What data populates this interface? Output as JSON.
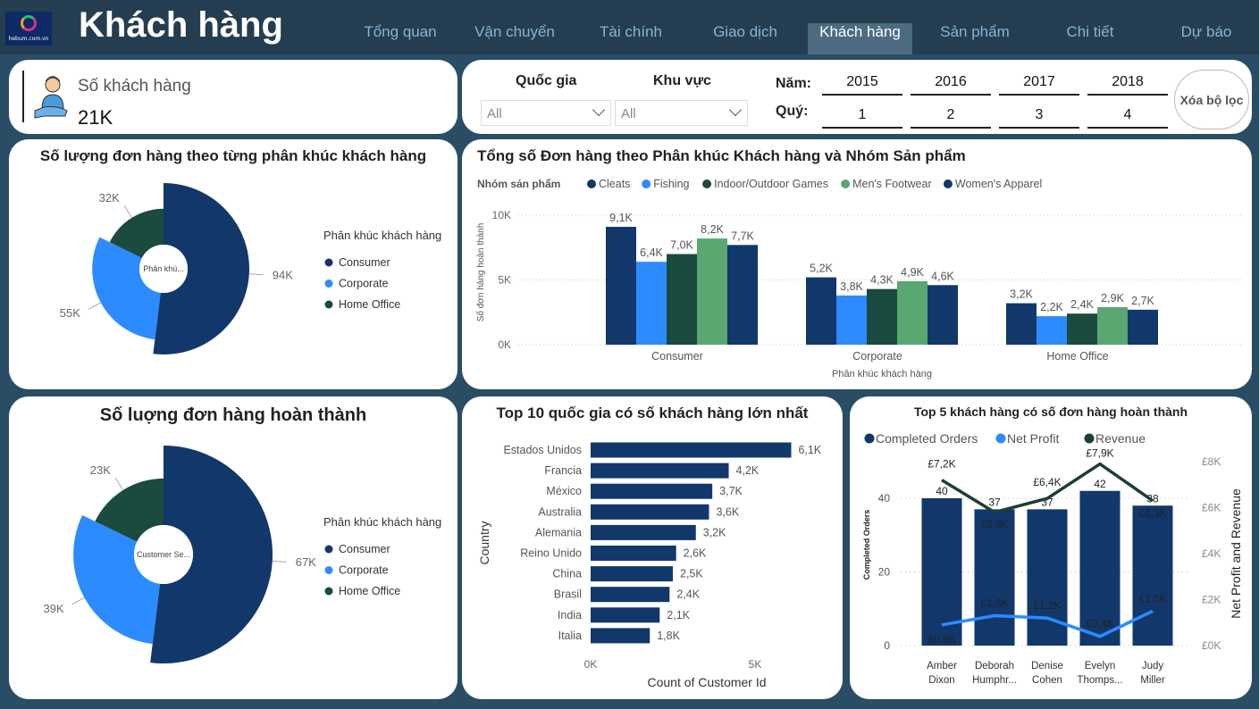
{
  "header": {
    "title": "Khách hàng",
    "logo_text": "hebum.com.vn",
    "tabs": [
      {
        "label": "Tổng quan"
      },
      {
        "label": "Vận chuyển"
      },
      {
        "label": "Tài chính"
      },
      {
        "label": "Giao dịch"
      },
      {
        "label": "Khách hàng",
        "active": true
      },
      {
        "label": "Sản phẩm"
      },
      {
        "label": "Chi tiết"
      },
      {
        "label": "Dự báo"
      }
    ]
  },
  "kpi": {
    "label": "Số khách hàng",
    "value": "21K",
    "icon": "customer-service-person-icon"
  },
  "filters": {
    "country_label": "Quốc gia",
    "country_value": "All",
    "region_label": "Khu vực",
    "region_value": "All",
    "year_label": "Năm:",
    "years": [
      "2015",
      "2016",
      "2017",
      "2018"
    ],
    "quarter_label": "Quý:",
    "quarters": [
      "1",
      "2",
      "3",
      "4"
    ],
    "clear_label": "Xóa bộ lọc"
  },
  "colors": {
    "consumer": "#12376b",
    "corporate": "#2c8bff",
    "home_office": "#1b4a3e",
    "mens_footwear": "#5aa772",
    "revenue": "#1d3f35"
  },
  "chart_data": [
    {
      "type": "pie",
      "variant": "rose-donut",
      "title": "Số lượng đơn hàng theo từng phân khúc khách hàng",
      "center_label": "Phân khú...",
      "legend_title": "Phân khúc khách hàng",
      "legend_position": "right",
      "categories": [
        "Consumer",
        "Corporate",
        "Home Office"
      ],
      "values": [
        94000,
        55000,
        32000
      ],
      "labels": [
        "94K",
        "55K",
        "32K"
      ],
      "colors": [
        "#12376b",
        "#2c8bff",
        "#1b4a3e"
      ]
    },
    {
      "type": "bar",
      "variant": "clustered",
      "title": "Tổng số Đơn hàng theo Phân khúc Khách hàng và Nhóm Sản phẩm",
      "legend_title": "Nhóm sản phẩm",
      "legend_position": "top-left",
      "xlabel": "Phân khúc khách hàng",
      "ylabel": "Số đơn hàng hoàn thành",
      "ylim": [
        0,
        10000
      ],
      "yticks": [
        "0K",
        "5K",
        "10K"
      ],
      "grid": true,
      "categories": [
        "Consumer",
        "Corporate",
        "Home Office"
      ],
      "series": [
        {
          "name": "Cleats",
          "color": "#12376b",
          "values": [
            9100,
            5200,
            3200
          ],
          "labels": [
            "9,1K",
            "5,2K",
            "3,2K"
          ]
        },
        {
          "name": "Fishing",
          "color": "#2c8bff",
          "values": [
            6400,
            3800,
            2200
          ],
          "labels": [
            "6,4K",
            "3,8K",
            "2,2K"
          ]
        },
        {
          "name": "Indoor/Outdoor Games",
          "color": "#1b4a3e",
          "values": [
            7000,
            4300,
            2400
          ],
          "labels": [
            "7,0K",
            "4,3K",
            "2,4K"
          ]
        },
        {
          "name": "Men's Footwear",
          "color": "#5aa772",
          "values": [
            8200,
            4900,
            2900
          ],
          "labels": [
            "8,2K",
            "4,9K",
            "2,9K"
          ]
        },
        {
          "name": "Women's Apparel",
          "color": "#10386a",
          "values": [
            7700,
            4600,
            2700
          ],
          "labels": [
            "7,7K",
            "4,6K",
            "2,7K"
          ]
        }
      ]
    },
    {
      "type": "pie",
      "variant": "rose-donut",
      "title": "Số luợng đơn hàng hoàn thành",
      "center_label": "Customer Se...",
      "legend_title": "Phân khúc khách hàng",
      "legend_position": "right",
      "categories": [
        "Consumer",
        "Corporate",
        "Home Office"
      ],
      "values": [
        67000,
        39000,
        23000
      ],
      "labels": [
        "67K",
        "39K",
        "23K"
      ],
      "colors": [
        "#12376b",
        "#2c8bff",
        "#1b4a3e"
      ]
    },
    {
      "type": "bar",
      "variant": "horizontal",
      "title": "Top 10 quốc gia có số khách hàng lớn nhất",
      "xlabel": "Count of Customer Id",
      "ylabel": "Country",
      "xlim": [
        0,
        6100
      ],
      "xticks": [
        "0K",
        "5K"
      ],
      "categories": [
        "Estados Unidos",
        "Francia",
        "México",
        "Australia",
        "Alemania",
        "Reino Unido",
        "China",
        "Brasil",
        "India",
        "Italia"
      ],
      "values": [
        6100,
        4200,
        3700,
        3600,
        3200,
        2600,
        2500,
        2400,
        2100,
        1800
      ],
      "labels": [
        "6,1K",
        "4,2K",
        "3,7K",
        "3,6K",
        "3,2K",
        "2,6K",
        "2,5K",
        "2,4K",
        "2,1K",
        "1,8K"
      ],
      "color": "#12376b"
    },
    {
      "type": "bar",
      "variant": "combo-bar-line",
      "title": "Top 5 khách hàng có số đơn hàng hoàn thành",
      "legend_position": "top-left",
      "categories": [
        "Amber Dixon",
        "Deborah Humphr...",
        "Denise Cohen",
        "Evelyn Thomps...",
        "Judy Miller"
      ],
      "ylabel": "Completed Orders",
      "y2label": "Net Profit and Revenue",
      "ylim": [
        0,
        48
      ],
      "yticks": [
        "0",
        "20",
        "40"
      ],
      "y2lim": [
        0,
        8000
      ],
      "y2ticks": [
        "£0K",
        "£2K",
        "£4K",
        "£6K",
        "£8K"
      ],
      "grid": true,
      "series": [
        {
          "name": "Completed Orders",
          "type": "bar",
          "color": "#12376b",
          "values": [
            40,
            37,
            37,
            42,
            38
          ],
          "labels": [
            "40",
            "37",
            "37",
            "42",
            "38"
          ]
        },
        {
          "name": "Net Profit",
          "type": "line",
          "axis": "y2",
          "color": "#2c8bff",
          "values": [
            900,
            1300,
            1200,
            400,
            1500
          ],
          "labels": [
            "£0,9K",
            "£1,3K",
            "£1,2K",
            "£0,4K",
            "£1,5K"
          ]
        },
        {
          "name": "Revenue",
          "type": "line",
          "axis": "y2",
          "color": "#1d3f35",
          "values": [
            7200,
            5800,
            6400,
            7900,
            6300
          ],
          "labels": [
            "£7,2K",
            "£5,8K",
            "£6,4K",
            "£7,9K",
            "£6,3K"
          ]
        }
      ]
    }
  ]
}
